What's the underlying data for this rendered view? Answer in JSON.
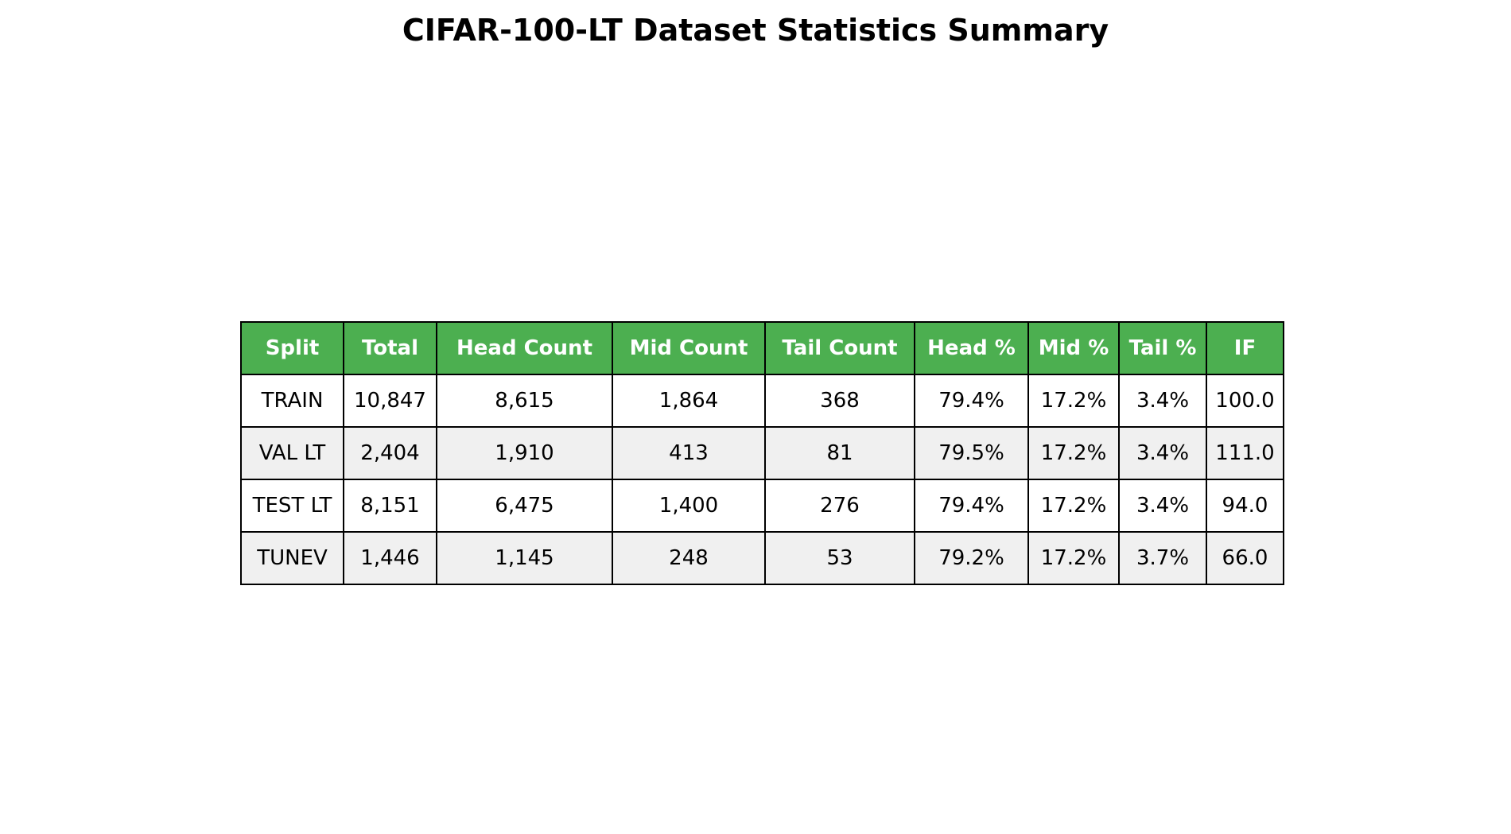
{
  "colors": {
    "header_bg": "#4caf50",
    "header_text": "#ffffff",
    "row_odd_bg": "#ffffff",
    "row_even_bg": "#f0f0f0",
    "border": "#000000"
  },
  "chart_data": {
    "type": "table",
    "title": "CIFAR-100-LT Dataset Statistics Summary",
    "columns": [
      "Split",
      "Total",
      "Head Count",
      "Mid Count",
      "Tail Count",
      "Head %",
      "Mid %",
      "Tail %",
      "IF"
    ],
    "rows": [
      [
        "TRAIN",
        "10,847",
        "8,615",
        "1,864",
        "368",
        "79.4%",
        "17.2%",
        "3.4%",
        "100.0"
      ],
      [
        "VAL LT",
        "2,404",
        "1,910",
        "413",
        "81",
        "79.5%",
        "17.2%",
        "3.4%",
        "111.0"
      ],
      [
        "TEST LT",
        "8,151",
        "6,475",
        "1,400",
        "276",
        "79.4%",
        "17.2%",
        "3.4%",
        "94.0"
      ],
      [
        "TUNEV",
        "1,446",
        "1,145",
        "248",
        "53",
        "79.2%",
        "17.2%",
        "3.7%",
        "66.0"
      ]
    ]
  }
}
